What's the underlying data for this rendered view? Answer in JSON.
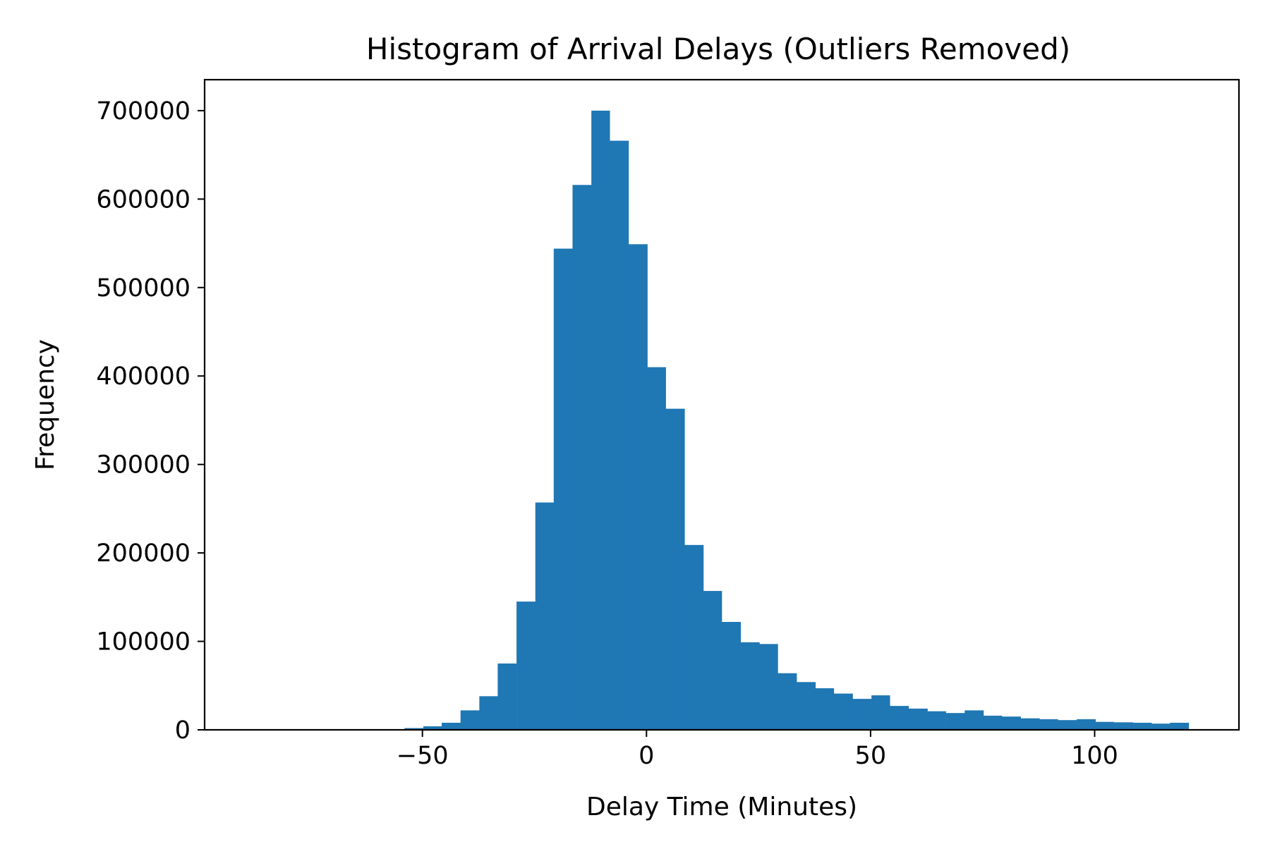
{
  "chart_data": {
    "type": "bar",
    "title": "Histogram of Arrival Delays (Outliers Removed)",
    "xlabel": "Delay Time (Minutes)",
    "ylabel": "Frequency",
    "xlim": [
      -98.6,
      132.2
    ],
    "ylim": [
      0,
      735000
    ],
    "xticks": [
      -50,
      0,
      50,
      100
    ],
    "xtick_labels": [
      "−50",
      "0",
      "50",
      "100"
    ],
    "yticks": [
      0,
      100000,
      200000,
      300000,
      400000,
      500000,
      600000,
      700000
    ],
    "ytick_labels": [
      "0",
      "100000",
      "200000",
      "300000",
      "400000",
      "500000",
      "600000",
      "700000"
    ],
    "grid": false,
    "bar_color": "#1f77b4",
    "bin_width": 4.17,
    "bins": [
      {
        "x0": -54.0,
        "x1": -49.8,
        "value": 2000
      },
      {
        "x0": -49.8,
        "x1": -45.7,
        "value": 4000
      },
      {
        "x0": -45.7,
        "x1": -41.5,
        "value": 8000
      },
      {
        "x0": -41.5,
        "x1": -37.3,
        "value": 22000
      },
      {
        "x0": -37.3,
        "x1": -33.2,
        "value": 38000
      },
      {
        "x0": -33.2,
        "x1": -29.0,
        "value": 75000
      },
      {
        "x0": -29.0,
        "x1": -24.8,
        "value": 145000
      },
      {
        "x0": -24.8,
        "x1": -20.7,
        "value": 257000
      },
      {
        "x0": -20.7,
        "x1": -16.5,
        "value": 544000
      },
      {
        "x0": -16.5,
        "x1": -12.3,
        "value": 616000
      },
      {
        "x0": -12.3,
        "x1": -8.2,
        "value": 700000
      },
      {
        "x0": -8.2,
        "x1": -4.0,
        "value": 666000
      },
      {
        "x0": -4.0,
        "x1": 0.2,
        "value": 549000
      },
      {
        "x0": 0.2,
        "x1": 4.3,
        "value": 410000
      },
      {
        "x0": 4.3,
        "x1": 8.5,
        "value": 363000
      },
      {
        "x0": 8.5,
        "x1": 12.7,
        "value": 209000
      },
      {
        "x0": 12.7,
        "x1": 16.8,
        "value": 157000
      },
      {
        "x0": 16.8,
        "x1": 21.0,
        "value": 122000
      },
      {
        "x0": 21.0,
        "x1": 25.2,
        "value": 99000
      },
      {
        "x0": 25.2,
        "x1": 29.3,
        "value": 97000
      },
      {
        "x0": 29.3,
        "x1": 33.5,
        "value": 64000
      },
      {
        "x0": 33.5,
        "x1": 37.7,
        "value": 54000
      },
      {
        "x0": 37.7,
        "x1": 41.8,
        "value": 47000
      },
      {
        "x0": 41.8,
        "x1": 46.0,
        "value": 41000
      },
      {
        "x0": 46.0,
        "x1": 50.2,
        "value": 35000
      },
      {
        "x0": 50.2,
        "x1": 54.3,
        "value": 39000
      },
      {
        "x0": 54.3,
        "x1": 58.5,
        "value": 27000
      },
      {
        "x0": 58.5,
        "x1": 62.7,
        "value": 24000
      },
      {
        "x0": 62.7,
        "x1": 66.8,
        "value": 21000
      },
      {
        "x0": 66.8,
        "x1": 71.0,
        "value": 19000
      },
      {
        "x0": 71.0,
        "x1": 75.2,
        "value": 22000
      },
      {
        "x0": 75.2,
        "x1": 79.3,
        "value": 16000
      },
      {
        "x0": 79.3,
        "x1": 83.5,
        "value": 15000
      },
      {
        "x0": 83.5,
        "x1": 87.7,
        "value": 13000
      },
      {
        "x0": 87.7,
        "x1": 91.8,
        "value": 12000
      },
      {
        "x0": 91.8,
        "x1": 96.0,
        "value": 11000
      },
      {
        "x0": 96.0,
        "x1": 100.2,
        "value": 12000
      },
      {
        "x0": 100.2,
        "x1": 104.3,
        "value": 9000
      },
      {
        "x0": 104.3,
        "x1": 108.5,
        "value": 8500
      },
      {
        "x0": 108.5,
        "x1": 112.7,
        "value": 8000
      },
      {
        "x0": 112.7,
        "x1": 116.8,
        "value": 7000
      },
      {
        "x0": 116.8,
        "x1": 121.0,
        "value": 8000
      }
    ]
  }
}
